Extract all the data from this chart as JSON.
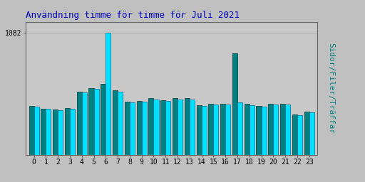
{
  "title": "Användning timme för timme för Juli 2021",
  "ylabel": "Sidor/Filer/Träffar",
  "hours": [
    0,
    1,
    2,
    3,
    4,
    5,
    6,
    7,
    8,
    9,
    10,
    11,
    12,
    13,
    14,
    15,
    16,
    17,
    18,
    19,
    20,
    21,
    22,
    23
  ],
  "bar1_values": [
    430,
    410,
    400,
    415,
    560,
    590,
    630,
    570,
    470,
    475,
    500,
    485,
    500,
    500,
    440,
    450,
    450,
    900,
    450,
    435,
    450,
    450,
    360,
    385
  ],
  "bar2_values": [
    425,
    405,
    395,
    408,
    553,
    582,
    1082,
    562,
    462,
    468,
    493,
    477,
    493,
    493,
    433,
    443,
    443,
    465,
    442,
    427,
    443,
    443,
    353,
    378
  ],
  "bar1_color": "#008080",
  "bar2_color": "#00e0ff",
  "bar1_edge": "#003333",
  "bar2_edge": "#006699",
  "background_color": "#c0c0c0",
  "plot_bg_color": "#c8c8c8",
  "title_color": "#0000bb",
  "ylabel_color": "#008080",
  "tick_color": "#000000",
  "ytick_label": "1082",
  "ytick_value": 1082,
  "ylim_max": 1180,
  "title_fontsize": 9,
  "ylabel_fontsize": 8,
  "bar_width": 0.42
}
